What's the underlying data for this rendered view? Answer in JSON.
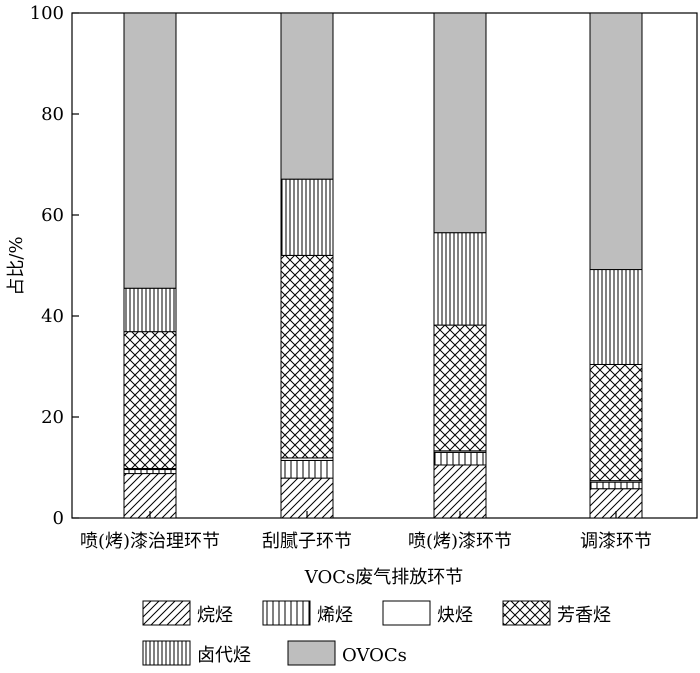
{
  "chart_data": {
    "type": "bar",
    "stacked": true,
    "categories": [
      "喷(烤)漆治理环节",
      "刮腻子环节",
      "喷(烤)漆环节",
      "调漆环节"
    ],
    "series": [
      {
        "name": "烷烃",
        "values": [
          8.8,
          7.9,
          10.5,
          5.8
        ]
      },
      {
        "name": "烯烃",
        "values": [
          0.8,
          3.5,
          2.5,
          1.3
        ]
      },
      {
        "name": "炔烃",
        "values": [
          0.2,
          0.5,
          0.3,
          0.3
        ]
      },
      {
        "name": "芳香烃",
        "values": [
          27.1,
          40.1,
          24.9,
          23.0
        ]
      },
      {
        "name": "卤代烃",
        "values": [
          8.6,
          15.1,
          18.3,
          18.8
        ]
      },
      {
        "name": "OVOCs",
        "values": [
          54.5,
          32.9,
          43.5,
          50.8
        ]
      }
    ],
    "xlabel": "VOCs废气排放环节",
    "ylabel": "占比/%",
    "ylim": [
      0,
      100
    ],
    "yticks": [
      0,
      20,
      40,
      60,
      80,
      100
    ],
    "grid": false,
    "legend_position": "bottom",
    "fills": {
      "烷烃": "diagonal-hatch",
      "烯烃": "vertical-hatch-wide",
      "炔烃": "#ffffff",
      "芳香烃": "cross-hatch",
      "卤代烃": "vertical-hatch-dense",
      "OVOCs": "#bebebe"
    }
  }
}
